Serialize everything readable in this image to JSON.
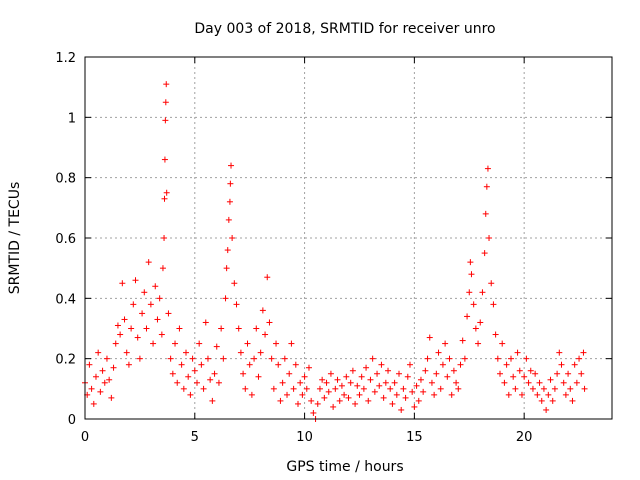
{
  "chart_data": {
    "type": "scatter",
    "title": "Day 003 of 2018, SRMTID for receiver unro",
    "xlabel": "GPS time / hours",
    "ylabel": "SRMTID / TECUs",
    "xlim": [
      0,
      24
    ],
    "ylim": [
      0,
      1.2
    ],
    "xticks": [
      0,
      5,
      10,
      15,
      20
    ],
    "xtick_labels": [
      "0",
      "5",
      "10",
      "15",
      "20"
    ],
    "yticks": [
      0,
      0.2,
      0.4,
      0.6,
      0.8,
      1.0,
      1.2
    ],
    "ytick_labels": [
      "0",
      "0.2",
      "0.4",
      "0.6",
      "0.8",
      "1",
      "1.2"
    ],
    "grid": true,
    "marker": "+",
    "color": "#ff0000",
    "series": [
      {
        "name": "SRMTID",
        "points": [
          [
            0.0,
            0.12
          ],
          [
            0.1,
            0.08
          ],
          [
            0.2,
            0.18
          ],
          [
            0.3,
            0.1
          ],
          [
            0.4,
            0.05
          ],
          [
            0.5,
            0.14
          ],
          [
            0.6,
            0.22
          ],
          [
            0.7,
            0.09
          ],
          [
            0.8,
            0.16
          ],
          [
            0.9,
            0.12
          ],
          [
            1.0,
            0.2
          ],
          [
            1.1,
            0.13
          ],
          [
            1.2,
            0.07
          ],
          [
            1.3,
            0.17
          ],
          [
            1.4,
            0.25
          ],
          [
            1.5,
            0.31
          ],
          [
            1.6,
            0.28
          ],
          [
            1.7,
            0.45
          ],
          [
            1.8,
            0.33
          ],
          [
            1.9,
            0.22
          ],
          [
            2.0,
            0.18
          ],
          [
            2.1,
            0.3
          ],
          [
            2.2,
            0.38
          ],
          [
            2.3,
            0.46
          ],
          [
            2.4,
            0.27
          ],
          [
            2.5,
            0.2
          ],
          [
            2.6,
            0.35
          ],
          [
            2.7,
            0.42
          ],
          [
            2.8,
            0.3
          ],
          [
            2.9,
            0.52
          ],
          [
            3.0,
            0.38
          ],
          [
            3.1,
            0.25
          ],
          [
            3.2,
            0.44
          ],
          [
            3.3,
            0.33
          ],
          [
            3.4,
            0.4
          ],
          [
            3.5,
            0.28
          ],
          [
            3.55,
            0.5
          ],
          [
            3.6,
            0.6
          ],
          [
            3.62,
            0.73
          ],
          [
            3.64,
            0.86
          ],
          [
            3.66,
            0.99
          ],
          [
            3.68,
            1.05
          ],
          [
            3.7,
            1.11
          ],
          [
            3.72,
            0.75
          ],
          [
            3.8,
            0.35
          ],
          [
            3.9,
            0.2
          ],
          [
            4.0,
            0.15
          ],
          [
            4.1,
            0.25
          ],
          [
            4.2,
            0.12
          ],
          [
            4.3,
            0.3
          ],
          [
            4.4,
            0.18
          ],
          [
            4.5,
            0.1
          ],
          [
            4.6,
            0.22
          ],
          [
            4.7,
            0.14
          ],
          [
            4.8,
            0.08
          ],
          [
            4.9,
            0.2
          ],
          [
            5.0,
            0.16
          ],
          [
            5.1,
            0.12
          ],
          [
            5.2,
            0.25
          ],
          [
            5.3,
            0.18
          ],
          [
            5.4,
            0.1
          ],
          [
            5.5,
            0.32
          ],
          [
            5.6,
            0.2
          ],
          [
            5.7,
            0.13
          ],
          [
            5.8,
            0.06
          ],
          [
            5.9,
            0.15
          ],
          [
            6.0,
            0.24
          ],
          [
            6.1,
            0.12
          ],
          [
            6.2,
            0.3
          ],
          [
            6.3,
            0.2
          ],
          [
            6.4,
            0.4
          ],
          [
            6.45,
            0.5
          ],
          [
            6.5,
            0.56
          ],
          [
            6.55,
            0.66
          ],
          [
            6.6,
            0.72
          ],
          [
            6.62,
            0.78
          ],
          [
            6.65,
            0.84
          ],
          [
            6.7,
            0.6
          ],
          [
            6.8,
            0.45
          ],
          [
            6.9,
            0.38
          ],
          [
            7.0,
            0.3
          ],
          [
            7.1,
            0.22
          ],
          [
            7.2,
            0.15
          ],
          [
            7.3,
            0.1
          ],
          [
            7.4,
            0.25
          ],
          [
            7.5,
            0.18
          ],
          [
            7.6,
            0.08
          ],
          [
            7.7,
            0.2
          ],
          [
            7.8,
            0.3
          ],
          [
            7.9,
            0.14
          ],
          [
            8.0,
            0.22
          ],
          [
            8.1,
            0.36
          ],
          [
            8.2,
            0.28
          ],
          [
            8.3,
            0.47
          ],
          [
            8.4,
            0.32
          ],
          [
            8.5,
            0.2
          ],
          [
            8.6,
            0.1
          ],
          [
            8.7,
            0.25
          ],
          [
            8.8,
            0.18
          ],
          [
            8.9,
            0.06
          ],
          [
            9.0,
            0.12
          ],
          [
            9.1,
            0.2
          ],
          [
            9.2,
            0.08
          ],
          [
            9.3,
            0.15
          ],
          [
            9.4,
            0.25
          ],
          [
            9.5,
            0.1
          ],
          [
            9.6,
            0.18
          ],
          [
            9.7,
            0.05
          ],
          [
            9.8,
            0.12
          ],
          [
            9.9,
            0.08
          ],
          [
            10.0,
            0.14
          ],
          [
            10.1,
            0.1
          ],
          [
            10.2,
            0.17
          ],
          [
            10.3,
            0.06
          ],
          [
            10.4,
            0.02
          ],
          [
            10.5,
            0.0
          ],
          [
            10.6,
            0.05
          ],
          [
            10.7,
            0.1
          ],
          [
            10.8,
            0.13
          ],
          [
            10.9,
            0.07
          ],
          [
            11.0,
            0.12
          ],
          [
            11.1,
            0.09
          ],
          [
            11.2,
            0.15
          ],
          [
            11.3,
            0.04
          ],
          [
            11.4,
            0.1
          ],
          [
            11.5,
            0.13
          ],
          [
            11.6,
            0.06
          ],
          [
            11.7,
            0.11
          ],
          [
            11.8,
            0.08
          ],
          [
            11.9,
            0.14
          ],
          [
            12.0,
            0.07
          ],
          [
            12.1,
            0.12
          ],
          [
            12.2,
            0.16
          ],
          [
            12.3,
            0.05
          ],
          [
            12.4,
            0.11
          ],
          [
            12.5,
            0.08
          ],
          [
            12.6,
            0.14
          ],
          [
            12.7,
            0.1
          ],
          [
            12.8,
            0.17
          ],
          [
            12.9,
            0.06
          ],
          [
            13.0,
            0.13
          ],
          [
            13.1,
            0.2
          ],
          [
            13.2,
            0.09
          ],
          [
            13.3,
            0.15
          ],
          [
            13.4,
            0.11
          ],
          [
            13.5,
            0.18
          ],
          [
            13.6,
            0.07
          ],
          [
            13.7,
            0.12
          ],
          [
            13.8,
            0.16
          ],
          [
            13.9,
            0.1
          ],
          [
            14.0,
            0.05
          ],
          [
            14.1,
            0.12
          ],
          [
            14.2,
            0.08
          ],
          [
            14.3,
            0.15
          ],
          [
            14.4,
            0.03
          ],
          [
            14.5,
            0.1
          ],
          [
            14.6,
            0.07
          ],
          [
            14.7,
            0.14
          ],
          [
            14.8,
            0.18
          ],
          [
            14.9,
            0.09
          ],
          [
            15.0,
            0.04
          ],
          [
            15.1,
            0.11
          ],
          [
            15.2,
            0.06
          ],
          [
            15.3,
            0.13
          ],
          [
            15.4,
            0.09
          ],
          [
            15.5,
            0.16
          ],
          [
            15.6,
            0.2
          ],
          [
            15.7,
            0.27
          ],
          [
            15.8,
            0.12
          ],
          [
            15.9,
            0.08
          ],
          [
            16.0,
            0.15
          ],
          [
            16.1,
            0.22
          ],
          [
            16.2,
            0.1
          ],
          [
            16.3,
            0.18
          ],
          [
            16.4,
            0.25
          ],
          [
            16.5,
            0.14
          ],
          [
            16.6,
            0.2
          ],
          [
            16.7,
            0.08
          ],
          [
            16.8,
            0.16
          ],
          [
            16.9,
            0.12
          ],
          [
            17.0,
            0.1
          ],
          [
            17.1,
            0.18
          ],
          [
            17.2,
            0.26
          ],
          [
            17.3,
            0.2
          ],
          [
            17.4,
            0.34
          ],
          [
            17.5,
            0.42
          ],
          [
            17.55,
            0.52
          ],
          [
            17.6,
            0.48
          ],
          [
            17.7,
            0.38
          ],
          [
            17.8,
            0.3
          ],
          [
            17.9,
            0.25
          ],
          [
            18.0,
            0.32
          ],
          [
            18.1,
            0.42
          ],
          [
            18.2,
            0.55
          ],
          [
            18.25,
            0.68
          ],
          [
            18.3,
            0.77
          ],
          [
            18.35,
            0.83
          ],
          [
            18.4,
            0.6
          ],
          [
            18.5,
            0.45
          ],
          [
            18.6,
            0.38
          ],
          [
            18.7,
            0.28
          ],
          [
            18.8,
            0.2
          ],
          [
            18.9,
            0.15
          ],
          [
            19.0,
            0.25
          ],
          [
            19.1,
            0.12
          ],
          [
            19.2,
            0.18
          ],
          [
            19.3,
            0.08
          ],
          [
            19.4,
            0.2
          ],
          [
            19.5,
            0.14
          ],
          [
            19.6,
            0.1
          ],
          [
            19.7,
            0.22
          ],
          [
            19.8,
            0.16
          ],
          [
            19.9,
            0.08
          ],
          [
            20.0,
            0.14
          ],
          [
            20.1,
            0.2
          ],
          [
            20.2,
            0.12
          ],
          [
            20.3,
            0.16
          ],
          [
            20.4,
            0.1
          ],
          [
            20.5,
            0.15
          ],
          [
            20.6,
            0.08
          ],
          [
            20.7,
            0.12
          ],
          [
            20.8,
            0.06
          ],
          [
            20.9,
            0.1
          ],
          [
            21.0,
            0.03
          ],
          [
            21.1,
            0.08
          ],
          [
            21.2,
            0.13
          ],
          [
            21.3,
            0.06
          ],
          [
            21.4,
            0.1
          ],
          [
            21.5,
            0.15
          ],
          [
            21.6,
            0.22
          ],
          [
            21.7,
            0.18
          ],
          [
            21.8,
            0.12
          ],
          [
            21.9,
            0.08
          ],
          [
            22.0,
            0.15
          ],
          [
            22.1,
            0.1
          ],
          [
            22.2,
            0.06
          ],
          [
            22.3,
            0.18
          ],
          [
            22.4,
            0.12
          ],
          [
            22.5,
            0.2
          ],
          [
            22.6,
            0.15
          ],
          [
            22.7,
            0.22
          ],
          [
            22.75,
            0.1
          ]
        ]
      }
    ]
  }
}
